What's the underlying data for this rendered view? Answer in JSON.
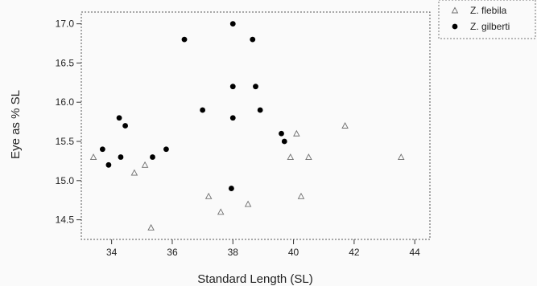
{
  "chart_data": {
    "type": "scatter",
    "xlabel": "Standard Length (SL)",
    "ylabel": "Eye as % SL",
    "xlim": [
      33,
      44.5
    ],
    "ylim": [
      14.25,
      17.15
    ],
    "xticks": [
      34,
      36,
      38,
      40,
      42,
      44
    ],
    "yticks": [
      14.5,
      15.0,
      15.5,
      16.0,
      16.5,
      17.0
    ],
    "xtick_labels": [
      "34",
      "36",
      "38",
      "40",
      "42",
      "44"
    ],
    "ytick_labels": [
      "14.5",
      "15.0",
      "15.5",
      "16.0",
      "16.5",
      "17.0"
    ],
    "grid": false,
    "legend_position": "top-right-outside",
    "series": [
      {
        "name": "Z. flebila",
        "marker": "open-triangle",
        "color": "#6e6e6e",
        "x": [
          33.4,
          34.75,
          35.1,
          35.3,
          37.2,
          37.6,
          38.5,
          39.9,
          40.1,
          40.25,
          40.5,
          41.7,
          43.55
        ],
        "y": [
          15.3,
          15.1,
          15.2,
          14.4,
          14.8,
          14.6,
          14.7,
          15.3,
          15.6,
          14.8,
          15.3,
          15.7,
          15.3
        ]
      },
      {
        "name": "Z. gilberti",
        "marker": "filled-circle",
        "color": "#000000",
        "x": [
          33.7,
          33.9,
          34.25,
          34.3,
          34.45,
          35.35,
          35.8,
          36.4,
          37.0,
          37.95,
          38.0,
          38.0,
          38.0,
          38.65,
          38.75,
          38.9,
          39.6,
          39.7
        ],
        "y": [
          15.4,
          15.2,
          15.8,
          15.3,
          15.7,
          15.3,
          15.4,
          16.8,
          15.9,
          14.9,
          17.0,
          16.2,
          15.8,
          16.8,
          16.2,
          15.9,
          15.6,
          15.5
        ]
      }
    ]
  }
}
